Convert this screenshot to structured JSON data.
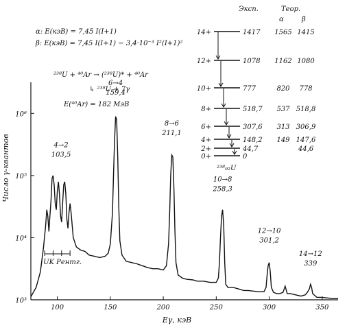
{
  "chart_data": {
    "type": "line",
    "xlabel": "Eγ, кэВ",
    "ylabel": "Число γ-квантов",
    "xlim": [
      75,
      365
    ],
    "ylim_log10": [
      3,
      6.5
    ],
    "x_ticks": [
      100,
      150,
      200,
      250,
      300,
      350
    ],
    "y_ticks": [
      {
        "label": "10³",
        "log": 3
      },
      {
        "label": "10⁴",
        "log": 4
      },
      {
        "label": "10⁵",
        "log": 5
      },
      {
        "label": "10⁶",
        "log": 6
      }
    ],
    "spectrum": [
      [
        75,
        3.05
      ],
      [
        80,
        3.2
      ],
      [
        84,
        3.45
      ],
      [
        87,
        3.85
      ],
      [
        89,
        4.2
      ],
      [
        90,
        4.45
      ],
      [
        91,
        4.35
      ],
      [
        92,
        4.1
      ],
      [
        93,
        4.35
      ],
      [
        94,
        4.6
      ],
      [
        95,
        4.95
      ],
      [
        96,
        5.0
      ],
      [
        97,
        4.85
      ],
      [
        98,
        4.55
      ],
      [
        99,
        4.45
      ],
      [
        100,
        4.75
      ],
      [
        101,
        4.9
      ],
      [
        102,
        4.7
      ],
      [
        103,
        4.35
      ],
      [
        104,
        4.25
      ],
      [
        105,
        4.55
      ],
      [
        106,
        4.85
      ],
      [
        107,
        4.9
      ],
      [
        108,
        4.7
      ],
      [
        109,
        4.3
      ],
      [
        110,
        4.15
      ],
      [
        111,
        4.4
      ],
      [
        112,
        4.55
      ],
      [
        113,
        4.4
      ],
      [
        115,
        4.0
      ],
      [
        118,
        3.85
      ],
      [
        122,
        3.8
      ],
      [
        126,
        3.78
      ],
      [
        130,
        3.72
      ],
      [
        135,
        3.7
      ],
      [
        140,
        3.68
      ],
      [
        145,
        3.7
      ],
      [
        148,
        3.75
      ],
      [
        150,
        3.9
      ],
      [
        152,
        4.4
      ],
      [
        153,
        5.0
      ],
      [
        154,
        5.55
      ],
      [
        155,
        5.95
      ],
      [
        156,
        5.9
      ],
      [
        157,
        5.3
      ],
      [
        158,
        4.5
      ],
      [
        159,
        3.95
      ],
      [
        161,
        3.72
      ],
      [
        165,
        3.62
      ],
      [
        170,
        3.6
      ],
      [
        175,
        3.58
      ],
      [
        180,
        3.55
      ],
      [
        185,
        3.52
      ],
      [
        190,
        3.5
      ],
      [
        195,
        3.5
      ],
      [
        200,
        3.48
      ],
      [
        203,
        3.55
      ],
      [
        205,
        3.9
      ],
      [
        206,
        4.4
      ],
      [
        207,
        5.0
      ],
      [
        208,
        5.33
      ],
      [
        209,
        5.3
      ],
      [
        210,
        4.8
      ],
      [
        211,
        4.1
      ],
      [
        212,
        3.6
      ],
      [
        214,
        3.4
      ],
      [
        218,
        3.35
      ],
      [
        222,
        3.33
      ],
      [
        228,
        3.32
      ],
      [
        232,
        3.3
      ],
      [
        238,
        3.3
      ],
      [
        244,
        3.28
      ],
      [
        250,
        3.28
      ],
      [
        252,
        3.35
      ],
      [
        253,
        3.6
      ],
      [
        254,
        4.0
      ],
      [
        255,
        4.35
      ],
      [
        256,
        4.45
      ],
      [
        257,
        4.2
      ],
      [
        258,
        3.6
      ],
      [
        259,
        3.25
      ],
      [
        261,
        3.2
      ],
      [
        266,
        3.2
      ],
      [
        272,
        3.17
      ],
      [
        276,
        3.15
      ],
      [
        280,
        3.15
      ],
      [
        285,
        3.14
      ],
      [
        290,
        3.13
      ],
      [
        295,
        3.13
      ],
      [
        297,
        3.2
      ],
      [
        298,
        3.4
      ],
      [
        299,
        3.55
      ],
      [
        300,
        3.6
      ],
      [
        301,
        3.45
      ],
      [
        302,
        3.2
      ],
      [
        304,
        3.12
      ],
      [
        307,
        3.1
      ],
      [
        310,
        3.1
      ],
      [
        313,
        3.12
      ],
      [
        315,
        3.22
      ],
      [
        317,
        3.1
      ],
      [
        320,
        3.1
      ],
      [
        325,
        3.08
      ],
      [
        330,
        3.06
      ],
      [
        334,
        3.08
      ],
      [
        336,
        3.12
      ],
      [
        338,
        3.18
      ],
      [
        339,
        3.25
      ],
      [
        340,
        3.2
      ],
      [
        341,
        3.1
      ],
      [
        345,
        3.04
      ],
      [
        350,
        3.04
      ],
      [
        355,
        3.03
      ],
      [
        360,
        3.02
      ],
      [
        365,
        3.02
      ]
    ],
    "peaks": [
      {
        "transition": "4→2",
        "energy": "103,5",
        "x": 103.5,
        "y_log": 5.3
      },
      {
        "transition": "6→4",
        "energy": "159,4",
        "x": 155,
        "y_log": 6.3
      },
      {
        "transition": "8→6",
        "energy": "211,1",
        "x": 208,
        "y_log": 5.65
      },
      {
        "transition": "10→8",
        "energy": "258,3",
        "x": 256,
        "y_log": 4.75
      },
      {
        "transition": "12→10",
        "energy": "301,2",
        "x": 300,
        "y_log": 3.92
      },
      {
        "transition": "14→12",
        "energy": "339",
        "x": 339,
        "y_log": 3.55
      }
    ],
    "xray_label": "UK Рентг.",
    "xray_range": [
      88,
      112
    ]
  },
  "formulas": {
    "alpha": "α: E(кэВ) = 7,45 I(I+1)",
    "beta": "β: E(кэВ) = 7,45 I(I+1) − 3,4·10⁻³ I²(I+1)²",
    "reaction1": "²³⁸U + ⁴⁰Ar → (²³⁸U)* + ⁴⁰Ar",
    "reaction2": "↳ ²³⁸U + 7γ",
    "energy": "E(⁴⁰Ar) = 182 МэВ"
  },
  "level_scheme": {
    "header_exp": "Эксп.",
    "header_theory": "Теор.",
    "col_alpha": "α",
    "col_beta": "β",
    "nucleus": "²³⁸₉₂U",
    "levels": [
      {
        "spin": "14+",
        "exp": "1417",
        "alpha": "1565",
        "beta": "1415",
        "e": 1417
      },
      {
        "spin": "12+",
        "exp": "1078",
        "alpha": "1162",
        "beta": "1080",
        "e": 1078
      },
      {
        "spin": "10+",
        "exp": "777",
        "alpha": "820",
        "beta": "778",
        "e": 777
      },
      {
        "spin": "8+",
        "exp": "518,7",
        "alpha": "537",
        "beta": "518,8",
        "e": 518.7
      },
      {
        "spin": "6+",
        "exp": "307,6",
        "alpha": "313",
        "beta": "306,9",
        "e": 307.6
      },
      {
        "spin": "4+",
        "exp": "148,2",
        "alpha": "149",
        "beta": "147,6",
        "e": 148.2
      },
      {
        "spin": "2+",
        "exp": "44,7",
        "alpha": "",
        "beta": "44,6",
        "e": 44.7
      },
      {
        "spin": "0+",
        "exp": "0",
        "alpha": "",
        "beta": "",
        "e": 0
      }
    ]
  }
}
